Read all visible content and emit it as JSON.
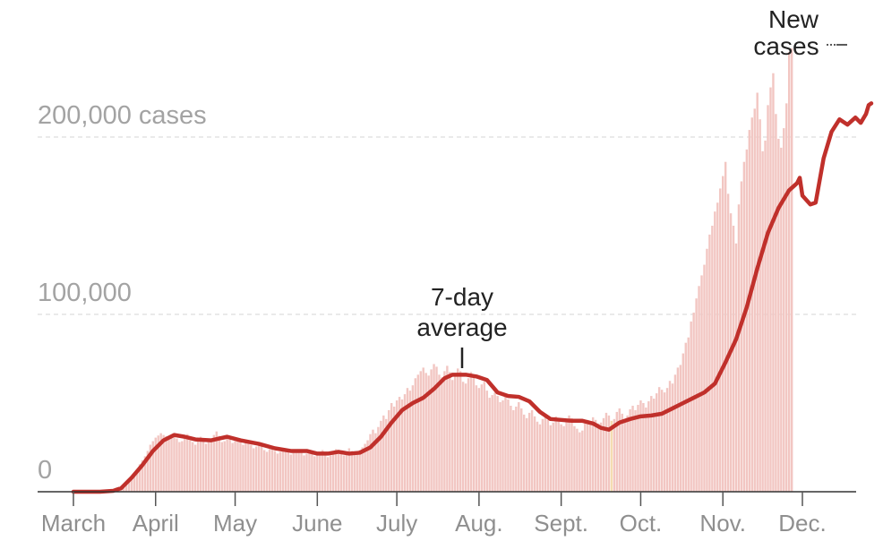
{
  "chart_data": {
    "type": "bar",
    "colors": {
      "bars": "#f2c6c2",
      "highlight_bars": "#f5dcb0",
      "average_line": "#c0302b",
      "grid": "#dddddd",
      "axis": "#333333"
    },
    "y_tick_labels": [
      "0",
      "100,000",
      "200,000 cases"
    ],
    "y_ticks": [
      0,
      100000,
      200000
    ],
    "ylim": [
      0,
      272000
    ],
    "x_tick_labels": [
      "March",
      "April",
      "May",
      "June",
      "July",
      "Aug.",
      "Sept.",
      "Oct.",
      "Nov.",
      "Dec."
    ],
    "x_ticks_day": [
      0,
      31,
      61,
      92,
      122,
      153,
      184,
      214,
      245,
      275
    ],
    "x_start_date": "2020-03-01",
    "x_end_date": "2020-12-17",
    "grid": "horizontal-dashed",
    "annotations": {
      "average": [
        "7-day",
        "average"
      ],
      "new_cases": [
        "New",
        "cases"
      ]
    },
    "average_points": [
      [
        0,
        0
      ],
      [
        10,
        0
      ],
      [
        15,
        500
      ],
      [
        18,
        2000
      ],
      [
        22,
        8000
      ],
      [
        26,
        15000
      ],
      [
        30,
        23000
      ],
      [
        34,
        29000
      ],
      [
        38,
        32000
      ],
      [
        42,
        31000
      ],
      [
        46,
        29500
      ],
      [
        52,
        29000
      ],
      [
        55,
        30000
      ],
      [
        58,
        31000
      ],
      [
        63,
        29000
      ],
      [
        70,
        27000
      ],
      [
        76,
        24500
      ],
      [
        82,
        23000
      ],
      [
        88,
        23000
      ],
      [
        92,
        21500
      ],
      [
        96,
        21500
      ],
      [
        100,
        22500
      ],
      [
        104,
        21500
      ],
      [
        108,
        22000
      ],
      [
        112,
        25000
      ],
      [
        116,
        31000
      ],
      [
        120,
        39000
      ],
      [
        124,
        46000
      ],
      [
        128,
        50000
      ],
      [
        132,
        53000
      ],
      [
        136,
        58000
      ],
      [
        140,
        64000
      ],
      [
        143,
        66000
      ],
      [
        148,
        66000
      ],
      [
        152,
        65000
      ],
      [
        156,
        63000
      ],
      [
        160,
        56000
      ],
      [
        164,
        54000
      ],
      [
        168,
        53500
      ],
      [
        172,
        51000
      ],
      [
        176,
        45000
      ],
      [
        180,
        41000
      ],
      [
        184,
        40500
      ],
      [
        188,
        40000
      ],
      [
        192,
        40000
      ],
      [
        196,
        38500
      ],
      [
        199,
        36000
      ],
      [
        202,
        35000
      ],
      [
        206,
        39000
      ],
      [
        210,
        41000
      ],
      [
        214,
        42500
      ],
      [
        218,
        43000
      ],
      [
        222,
        44000
      ],
      [
        226,
        47000
      ],
      [
        230,
        50000
      ],
      [
        234,
        53000
      ],
      [
        238,
        56000
      ],
      [
        242,
        61000
      ],
      [
        246,
        73000
      ],
      [
        250,
        86000
      ],
      [
        254,
        104000
      ],
      [
        258,
        126000
      ],
      [
        262,
        146000
      ],
      [
        266,
        160000
      ],
      [
        270,
        170000
      ],
      [
        273,
        174000
      ],
      [
        274,
        177000
      ],
      [
        275,
        167000
      ],
      [
        278,
        162000
      ],
      [
        280,
        163000
      ],
      [
        283,
        188000
      ],
      [
        286,
        203000
      ],
      [
        289,
        210000
      ],
      [
        292,
        207000
      ],
      [
        295,
        211000
      ],
      [
        297,
        208000
      ],
      [
        299,
        213000
      ],
      [
        300,
        218000
      ],
      [
        301,
        219000
      ]
    ],
    "daily_new_cases": [
      0,
      0,
      0,
      0,
      0,
      0,
      0,
      0,
      0,
      0,
      0,
      0,
      0,
      0,
      300,
      600,
      1200,
      1800,
      2600,
      3500,
      5000,
      6500,
      8200,
      10000,
      12500,
      15500,
      17800,
      20000,
      23000,
      26500,
      28500,
      30500,
      31700,
      33000,
      32000,
      31300,
      30700,
      32000,
      31500,
      30000,
      28000,
      28500,
      30000,
      32500,
      29000,
      28000,
      26500,
      29000,
      31000,
      29500,
      27000,
      28000,
      30000,
      32000,
      34000,
      31500,
      28000,
      28500,
      31000,
      30000,
      27500,
      28500,
      29000,
      28000,
      26500,
      28000,
      27500,
      26500,
      24500,
      25500,
      27000,
      25500,
      23500,
      22500,
      24000,
      25000,
      23000,
      21500,
      22500,
      23500,
      24500,
      23000,
      21000,
      22000,
      23500,
      24000,
      22500,
      20500,
      21500,
      22500,
      21500,
      20000,
      21000,
      22500,
      23500,
      21000,
      19500,
      20500,
      22500,
      24000,
      23500,
      21500,
      20500,
      22500,
      24500,
      23000,
      21000,
      22000,
      23500,
      25000,
      27000,
      29000,
      32500,
      35000,
      33000,
      36500,
      40000,
      43000,
      41000,
      46000,
      50000,
      48000,
      51500,
      53500,
      52000,
      55000,
      58500,
      57000,
      60000,
      64000,
      66000,
      68000,
      70000,
      67000,
      65500,
      69000,
      72000,
      70500,
      66000,
      64500,
      68000,
      71000,
      67500,
      63000,
      66000,
      69500,
      68000,
      62000,
      61000,
      64000,
      67500,
      65500,
      60000,
      58500,
      60500,
      62000,
      57000,
      53000,
      54500,
      56000,
      54000,
      50500,
      51500,
      55000,
      52000,
      48500,
      46000,
      48000,
      50500,
      47000,
      43500,
      41500,
      44500,
      46000,
      42500,
      39500,
      38000,
      41000,
      43000,
      40500,
      37500,
      39000,
      42500,
      41500,
      38000,
      37000,
      39500,
      43000,
      41500,
      37000,
      35500,
      33500,
      34500,
      38500,
      40500,
      39000,
      42000,
      40500,
      38500,
      39000,
      41500,
      44500,
      43000,
      40000,
      41000,
      45000,
      47000,
      44000,
      40500,
      43000,
      46500,
      48500,
      46000,
      49000,
      51500,
      50000,
      47500,
      51000,
      54000,
      52500,
      55500,
      59000,
      57500,
      56000,
      58500,
      62500,
      61000,
      66000,
      70000,
      71500,
      78000,
      84000,
      87000,
      96000,
      101000,
      109000,
      116000,
      122000,
      128000,
      137000,
      145000,
      150000,
      158000,
      163000,
      171000,
      178000,
      186000,
      168000,
      157000,
      150000,
      140000,
      162000,
      175000,
      186000,
      193000,
      204000,
      211000,
      216000,
      225000,
      210000,
      192000,
      198000,
      218000,
      228000,
      236000,
      213000,
      199000,
      194000,
      205000,
      219000,
      248000,
      250000
    ],
    "highlight_days": [
      203,
      275,
      293
    ]
  }
}
